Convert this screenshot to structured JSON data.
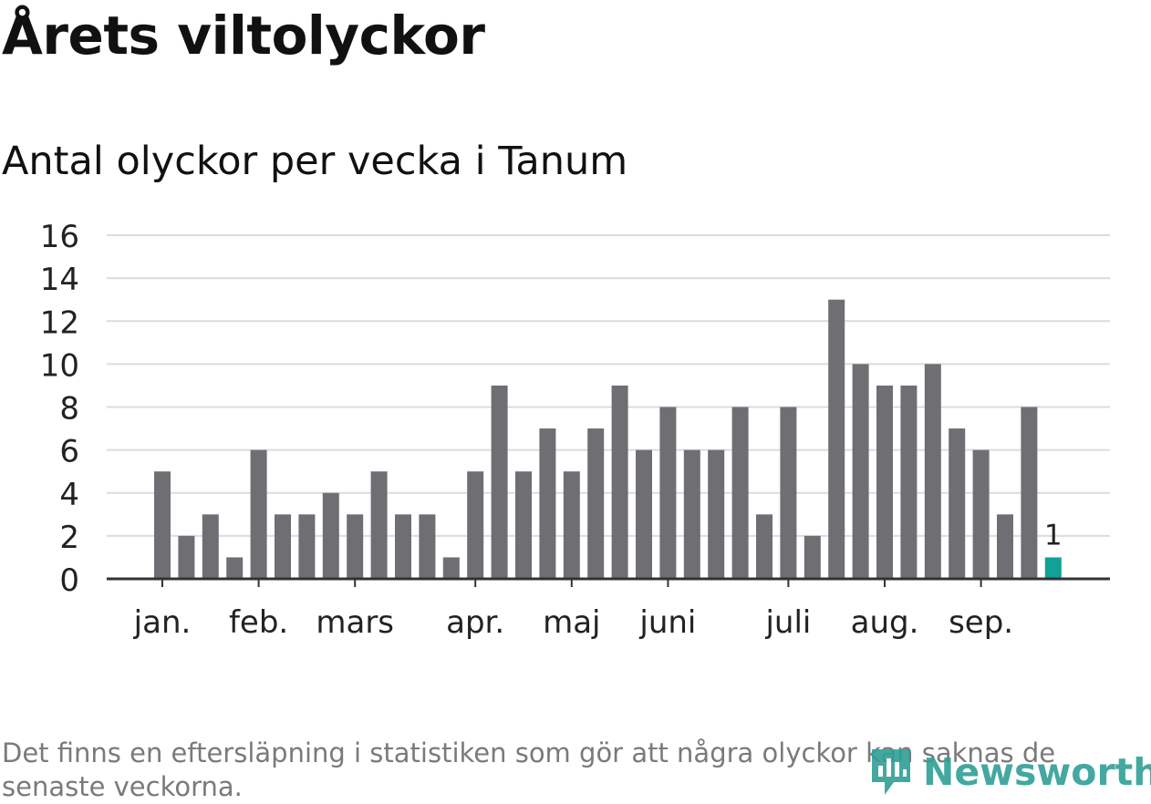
{
  "title": "Årets viltolyckor",
  "subtitle": "Antal olyckor per vecka i Tanum",
  "footnote": "Det finns en eftersläpning i statistiken som gör att några olyckor kan saknas de senaste veckorna.",
  "logo_text": "Newsworthy",
  "colors": {
    "bar": "#6f6e73",
    "highlight": "#12a295",
    "grid": "#dcdcdc",
    "axis": "#333333",
    "text": "#222222"
  },
  "chart_data": {
    "type": "bar",
    "title": "Årets viltolyckor",
    "subtitle": "Antal olyckor per vecka i Tanum",
    "xlabel": "",
    "ylabel": "",
    "ylim": [
      0,
      16
    ],
    "yticks": [
      0,
      2,
      4,
      6,
      8,
      10,
      12,
      14,
      16
    ],
    "grid": true,
    "values": [
      5,
      2,
      3,
      1,
      6,
      3,
      3,
      4,
      3,
      5,
      3,
      3,
      1,
      5,
      9,
      5,
      7,
      5,
      7,
      9,
      6,
      8,
      6,
      6,
      8,
      3,
      8,
      2,
      13,
      10,
      9,
      9,
      10,
      7,
      6,
      3,
      8,
      1
    ],
    "highlight_index": 37,
    "highlight_label": "1",
    "month_labels": [
      {
        "label": "jan.",
        "bar_index": 0
      },
      {
        "label": "feb.",
        "bar_index": 4
      },
      {
        "label": "mars",
        "bar_index": 8
      },
      {
        "label": "apr.",
        "bar_index": 13
      },
      {
        "label": "maj",
        "bar_index": 17
      },
      {
        "label": "juni",
        "bar_index": 21
      },
      {
        "label": "juli",
        "bar_index": 26
      },
      {
        "label": "aug.",
        "bar_index": 30
      },
      {
        "label": "sep.",
        "bar_index": 34
      }
    ]
  }
}
